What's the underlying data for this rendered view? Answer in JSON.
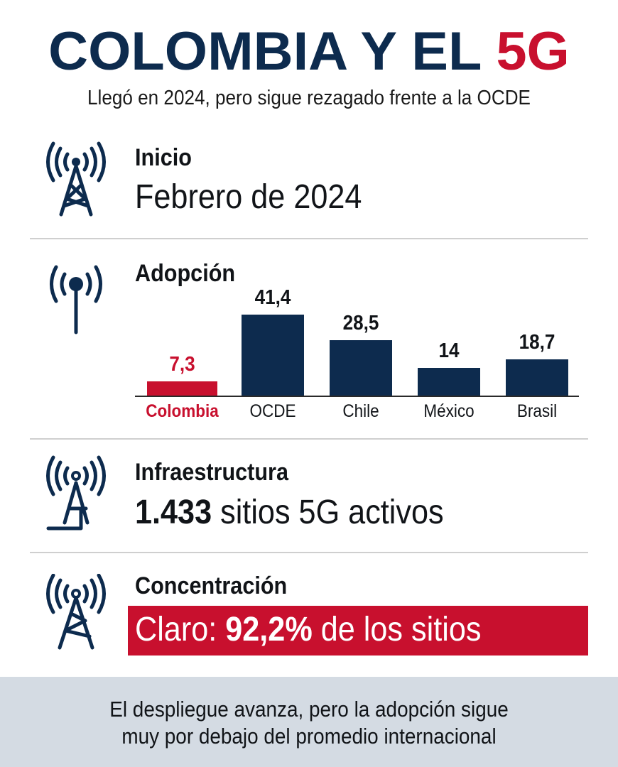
{
  "header": {
    "title_main": "COLOMBIA Y EL ",
    "title_accent": "5G",
    "subtitle": "Llegó en 2024, pero sigue rezagado frente a la OCDE"
  },
  "colors": {
    "navy": "#0d2b4e",
    "red": "#c8102e",
    "footer_bg": "#d4dbe3"
  },
  "sections": {
    "inicio": {
      "icon": "cell-tower-icon",
      "label": "Inicio",
      "value": "Febrero de 2024"
    },
    "adopcion": {
      "icon": "antenna-icon",
      "label": "Adopción"
    },
    "infraestructura": {
      "icon": "cell-tower-icon",
      "label": "Infraestructura",
      "value_bold": "1.433",
      "value_rest": " sitios 5G activos"
    },
    "concentracion": {
      "icon": "cell-tower-icon",
      "label": "Concentración",
      "value_prefix": "Claro: ",
      "value_bold": "92,2%",
      "value_rest": " de los sitios"
    }
  },
  "chart_data": {
    "type": "bar",
    "title": "Adopción",
    "categories": [
      "Colombia",
      "OCDE",
      "Chile",
      "México",
      "Brasil"
    ],
    "values": [
      7.3,
      41.4,
      28.5,
      14,
      18.7
    ],
    "value_labels": [
      "7,3",
      "41,4",
      "28,5",
      "14",
      "18,7"
    ],
    "highlight_index": 0,
    "xlabel": "",
    "ylabel": "",
    "ylim": [
      0,
      41.4
    ],
    "grid": false,
    "legend": "none"
  },
  "footer": {
    "line1": "El despliegue avanza, pero la adopción sigue",
    "line2": "muy por debajo del promedio internacional"
  }
}
